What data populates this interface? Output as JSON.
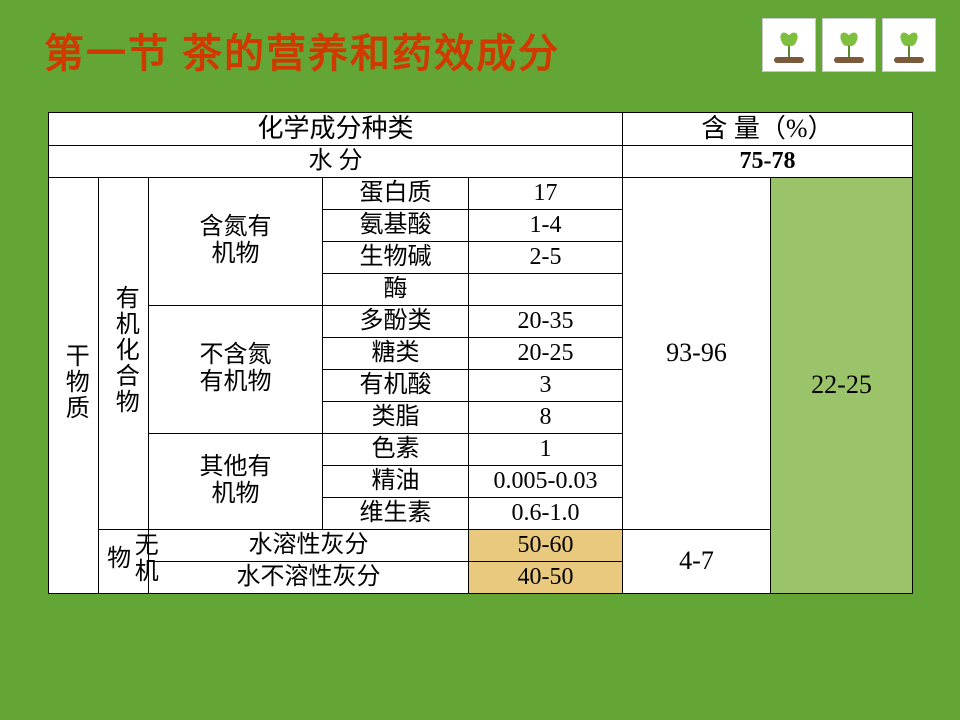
{
  "colors": {
    "slide_bg": "#64a636",
    "title_color": "#d03a00",
    "highlight_orange": "#e8c97e",
    "highlight_green": "#9bc46a",
    "border_color": "#000000",
    "cell_bg": "#ffffff"
  },
  "title": "第一节 茶的营养和药效成分",
  "table": {
    "header_left": "化学成分种类",
    "header_right": "含 量（%）",
    "water_row_label": "水   分",
    "water_row_value": "75-78",
    "dry_matter_label": "干物质",
    "organic_label": "有机化合物",
    "inorganic_label": "无机物",
    "groups": {
      "nitrogen": "含氮有\n机物",
      "non_nitrogen": "不含氮\n有机物",
      "other": "其他有\n机物"
    },
    "organic_rows": [
      {
        "sub": "蛋白质",
        "val": "17"
      },
      {
        "sub": "氨基酸",
        "val": "1-4"
      },
      {
        "sub": "生物碱",
        "val": "2-5"
      },
      {
        "sub": "酶",
        "val": ""
      },
      {
        "sub": "多酚类",
        "val": "20-35"
      },
      {
        "sub": "糖类",
        "val": "20-25"
      },
      {
        "sub": "有机酸",
        "val": "3"
      },
      {
        "sub": "类脂",
        "val": "8"
      },
      {
        "sub": "色素",
        "val": "1"
      },
      {
        "sub": "精油",
        "val": "0.005-0.03"
      },
      {
        "sub": "维生素",
        "val": "0.6-1.0"
      }
    ],
    "inorganic_rows": [
      {
        "sub": "水溶性灰分",
        "val": "50-60"
      },
      {
        "sub": "水不溶性灰分",
        "val": "40-50"
      }
    ],
    "organic_total": "93-96",
    "inorganic_total": "4-7",
    "dry_matter_total": "22-25"
  },
  "deco": {
    "icon": "sprout-icon"
  }
}
